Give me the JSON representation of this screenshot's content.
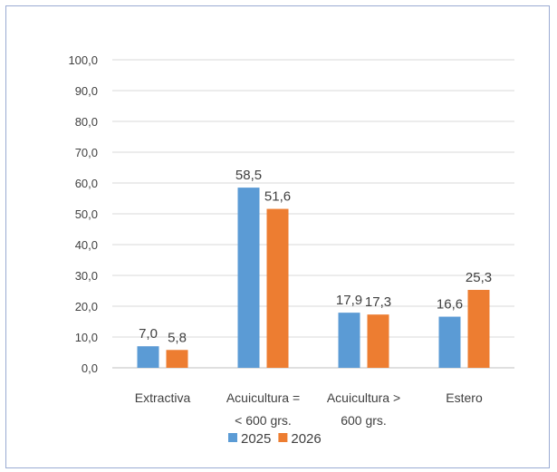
{
  "chart_data": {
    "type": "bar",
    "categories": [
      [
        "Extractiva"
      ],
      [
        "Acuicultura =",
        "< 600 grs."
      ],
      [
        "Acuicultura >",
        "600 grs."
      ],
      [
        "Estero"
      ]
    ],
    "series": [
      {
        "name": "2025",
        "color": "#5b9bd5",
        "values": [
          7.0,
          58.5,
          17.9,
          16.6
        ],
        "labels": [
          "7,0",
          "58,5",
          "17,9",
          "16,6"
        ]
      },
      {
        "name": "2026",
        "color": "#ed7d31",
        "values": [
          5.8,
          51.6,
          17.3,
          25.3
        ],
        "labels": [
          "5,8",
          "51,6",
          "17,3",
          "25,3"
        ]
      }
    ],
    "ylim": [
      0,
      100
    ],
    "yticks": [
      {
        "value": 0,
        "label": "0,0"
      },
      {
        "value": 10,
        "label": "10,0"
      },
      {
        "value": 20,
        "label": "20,0"
      },
      {
        "value": 30,
        "label": "30,0"
      },
      {
        "value": 40,
        "label": "40,0"
      },
      {
        "value": 50,
        "label": "50,0"
      },
      {
        "value": 60,
        "label": "60,0"
      },
      {
        "value": 70,
        "label": "70,0"
      },
      {
        "value": 80,
        "label": "80,0"
      },
      {
        "value": 90,
        "label": "90,0"
      },
      {
        "value": 100,
        "label": "100,0"
      }
    ],
    "grid": true,
    "legend_position": "bottom",
    "title": "",
    "xlabel": "",
    "ylabel": ""
  }
}
